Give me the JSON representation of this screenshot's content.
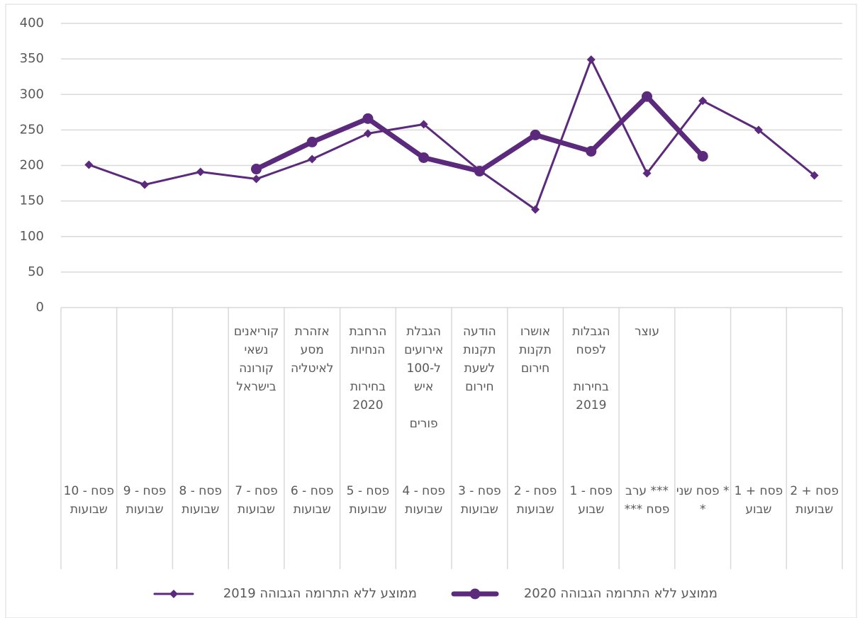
{
  "chart_data": {
    "type": "line",
    "categories": [
      "פסח - 10 שבועות",
      "פסח - 9 שבועות",
      "פסח - 8 שבועות",
      "פסח - 7 שבועות",
      "פסח - 6 שבועות",
      "פסח - 5 שבועות",
      "פסח - 4 שבועות",
      "פסח - 3 שבועות",
      "פסח - 2 שבועות",
      "פסח - 1 שבוע",
      "*** ערב פסח ***",
      "* פסח שני *",
      "פסח + 1 שבוע",
      "פסח + 2 שבועות"
    ],
    "events": [
      null,
      null,
      null,
      [
        "קוריאנים נשאי קורונה בישראל"
      ],
      [
        "אזהרת מסע לאיטליה"
      ],
      [
        "הרחבת הנחיות",
        "בחירות 2020"
      ],
      [
        "הגבלת אירועים ל-100 איש",
        "פורים"
      ],
      [
        "הודעה תקנות לשעת חירום"
      ],
      [
        "אושרו תקנות חירום"
      ],
      [
        "הגבלות לפסח",
        "בחירות 2019"
      ],
      [
        "עוצר"
      ],
      null,
      null,
      null
    ],
    "series": [
      {
        "name": "ממוצע ללא התרומה הגבוהה 2019",
        "color": "#5c2a7d",
        "width": 3,
        "marker": "diamond",
        "values": [
          201,
          173,
          191,
          181,
          209,
          245,
          258,
          193,
          138,
          349,
          189,
          291,
          250,
          186
        ]
      },
      {
        "name": "ממוצע ללא התרומה הגבוהה 2020",
        "color": "#5c2a7d",
        "width": 7,
        "marker": "circle",
        "values": [
          null,
          null,
          null,
          195,
          233,
          266,
          211,
          192,
          243,
          220,
          297,
          213,
          null,
          null
        ]
      }
    ],
    "ylim": [
      0,
      400
    ],
    "yticks": [
      0,
      50,
      100,
      150,
      200,
      250,
      300,
      350,
      400
    ],
    "grid": true,
    "legend": "bottom"
  }
}
